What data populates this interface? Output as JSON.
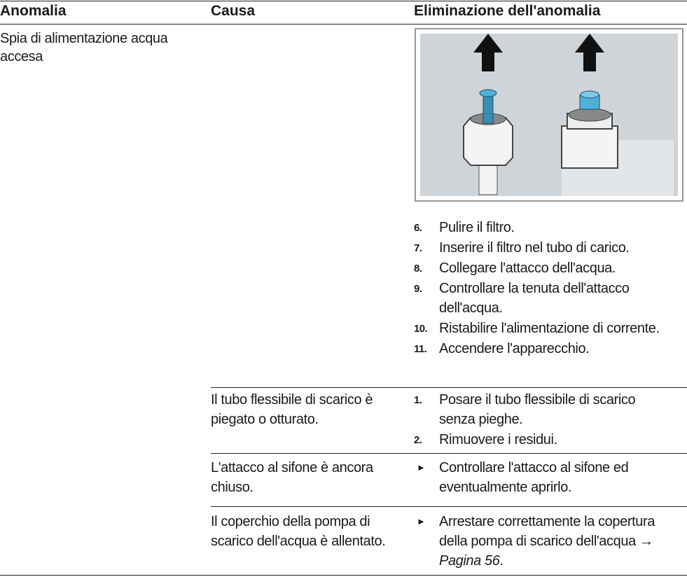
{
  "table": {
    "header": [
      "Anomalia",
      "Causa",
      "Eliminazione dell'anomalia"
    ],
    "anomaly": "Spia di alimentazione acqua accesa",
    "groups": [
      {
        "steps": [
          {
            "number": "6.",
            "text": "Pulire il filtro."
          },
          {
            "number": "7.",
            "text": "Inserire il filtro nel tubo di carico."
          },
          {
            "number": "8.",
            "text": "Collegare l'attacco dell'acqua."
          },
          {
            "number": "9.",
            "text": "Controllare la tenuta dell'attacco dell'acqua."
          },
          {
            "number": "10.",
            "text": "Ristabilire l'alimentazione di corren­te."
          },
          {
            "number": "11.",
            "text": "Accendere l'apparecchio."
          }
        ]
      },
      {
        "cause": "Il tubo flessibile di scarico è piegato o otturato.",
        "steps": [
          {
            "number": "1.",
            "text": "Posare il tubo flessibile di scarico senza pieghe."
          },
          {
            "number": "2.",
            "text": "Rimuovere i residui."
          }
        ]
      },
      {
        "cause": "L'attacco al sifone è ancora chiuso.",
        "action": "Controllare l'attacco al sifone ed eventualmente aprirlo."
      },
      {
        "cause": "Il coperchio della pompa di scarico dell'acqua è allenta­to.",
        "action": "Arrestare correttamente la copertu­ra della pompa di scarico dell'acqua",
        "link": {
          "arrow": "→",
          "label": "Pagina 56",
          "suffix": "."
        }
      }
    ]
  }
}
